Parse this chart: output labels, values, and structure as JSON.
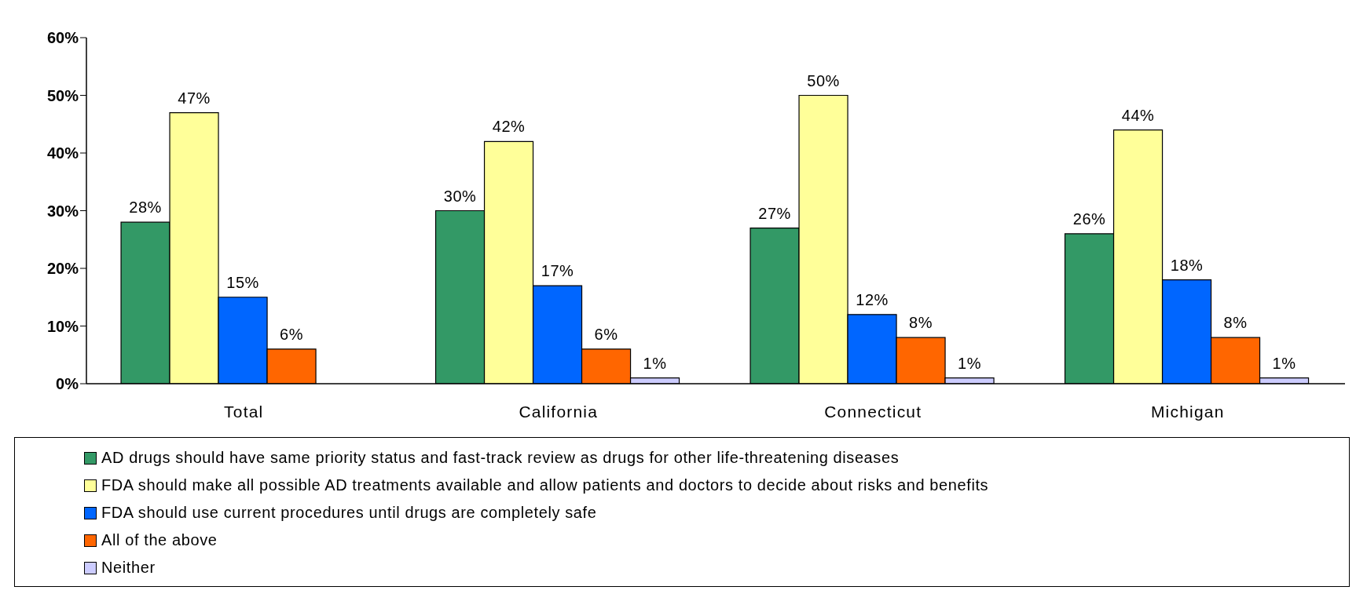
{
  "chart_data": {
    "type": "bar",
    "categories": [
      "Total",
      "California",
      "Connecticut",
      "Michigan"
    ],
    "series": [
      {
        "name": "AD drugs should have same priority status and fast-track review as drugs for other life-threatening diseases",
        "color": "#339966",
        "values": [
          28,
          30,
          27,
          26
        ],
        "value_labels": [
          "28%",
          "30%",
          "27%",
          "26%"
        ]
      },
      {
        "name": "FDA should make all possible AD treatments available and allow patients and doctors to decide about risks and benefits",
        "color": "#ffff99",
        "values": [
          47,
          42,
          50,
          44
        ],
        "value_labels": [
          "47%",
          "42%",
          "50%",
          "44%"
        ]
      },
      {
        "name": "FDA should use current procedures until drugs are completely safe",
        "color": "#0066ff",
        "values": [
          15,
          17,
          12,
          18
        ],
        "value_labels": [
          "15%",
          "17%",
          "12%",
          "18%"
        ]
      },
      {
        "name": "All of the above",
        "color": "#ff6600",
        "values": [
          6,
          6,
          8,
          8
        ],
        "value_labels": [
          "6%",
          "6%",
          "8%",
          "8%"
        ]
      },
      {
        "name": "Neither",
        "color": "#ccccff",
        "values": [
          null,
          1,
          1,
          1
        ],
        "value_labels": [
          null,
          "1%",
          "1%",
          "1%"
        ]
      }
    ],
    "ylim": [
      0,
      60
    ],
    "yticks": [
      {
        "value": 0,
        "label": "0%"
      },
      {
        "value": 10,
        "label": "10%"
      },
      {
        "value": 20,
        "label": "20%"
      },
      {
        "value": 30,
        "label": "30%"
      },
      {
        "value": 40,
        "label": "40%"
      },
      {
        "value": 50,
        "label": "50%"
      },
      {
        "value": 60,
        "label": "60%"
      }
    ],
    "grid": false,
    "legend": "bottom"
  }
}
